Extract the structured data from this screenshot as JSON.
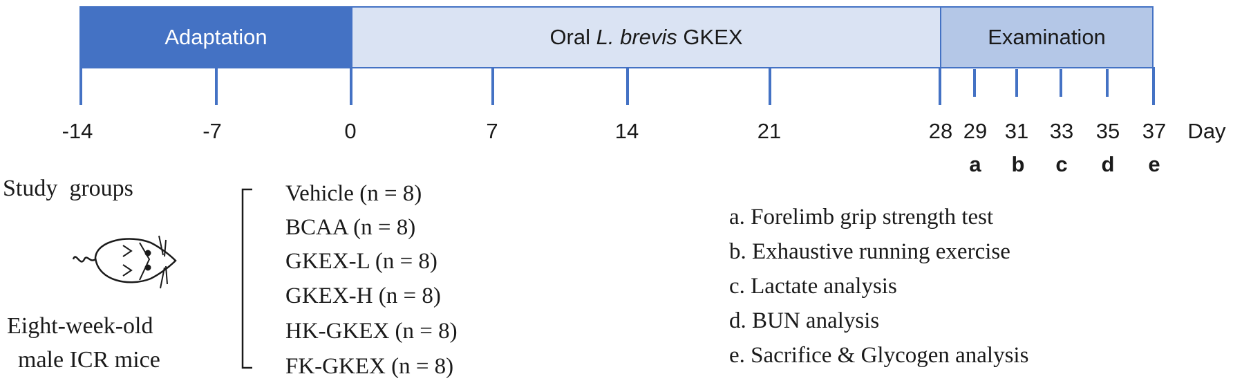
{
  "timeline": {
    "phases": [
      {
        "label": "Adaptation"
      },
      {
        "label_prefix": "Oral ",
        "label_italic": "L. brevis",
        "label_suffix": " GKEX"
      },
      {
        "label": "Examination"
      }
    ],
    "days": [
      "-14",
      "-7",
      "0",
      "7",
      "14",
      "21",
      "28",
      "29",
      "31",
      "33",
      "35",
      "37"
    ],
    "unit": "Day",
    "exam_letters": [
      "a",
      "b",
      "c",
      "d",
      "e"
    ],
    "colors": {
      "adaptation": "#4472c4",
      "oral": "#dae3f3",
      "examination": "#b4c7e7",
      "tick": "#4472c4"
    }
  },
  "study": {
    "title": "Study  groups",
    "caption_line1": "Eight-week-old",
    "caption_line2": "male ICR mice",
    "groups": [
      "Vehicle (n = 8)",
      "BCAA (n = 8)",
      "GKEX-L (n = 8)",
      "GKEX-H (n = 8)",
      "HK-GKEX (n = 8)",
      "FK-GKEX (n = 8)"
    ]
  },
  "examinations": [
    "a. Forelimb grip strength test",
    "b. Exhaustive running exercise",
    "c. Lactate analysis",
    "d. BUN analysis",
    "e. Sacrifice & Glycogen analysis"
  ]
}
